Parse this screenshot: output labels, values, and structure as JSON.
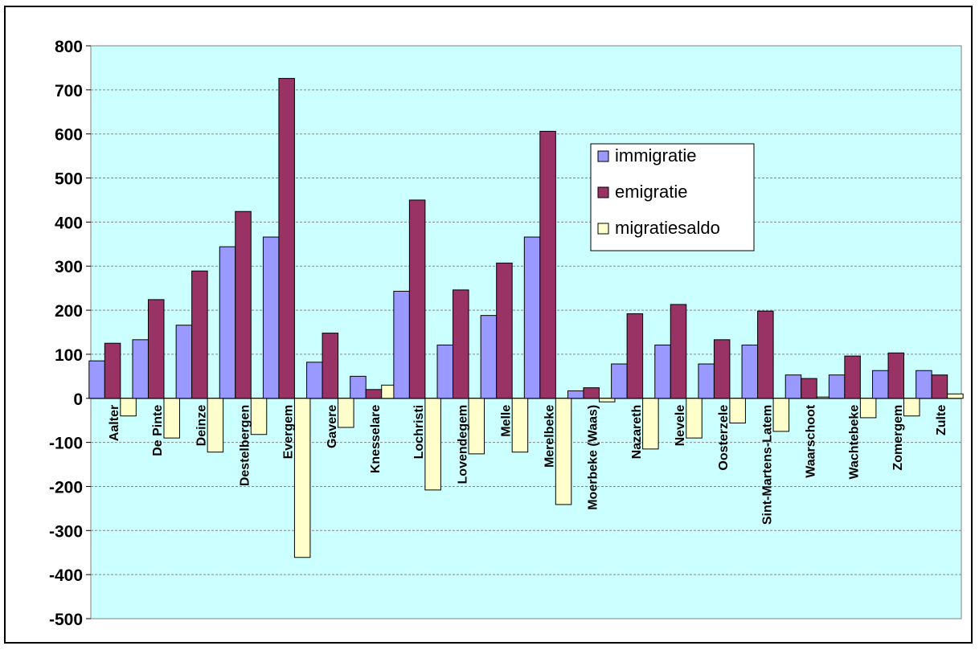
{
  "chart_data": {
    "type": "bar",
    "title": "",
    "xlabel": "",
    "ylabel": "",
    "ylim": [
      -500,
      800
    ],
    "yticks": [
      800,
      700,
      600,
      500,
      400,
      300,
      200,
      100,
      0,
      -100,
      -200,
      -300,
      -400,
      -500
    ],
    "grid": true,
    "legend_position": "top-right",
    "categories": [
      "Aalter",
      "De Pinte",
      "Deinze",
      "Destelbergen",
      "Evergem",
      "Gavere",
      "Knesselare",
      "Lochristi",
      "Lovendegem",
      "Melle",
      "Merelbeke",
      "Moerbeke (Waas)",
      "Nazareth",
      "Nevele",
      "Oosterzele",
      "Sint-Martens-Latem",
      "Waarschoot",
      "Wachtebeke",
      "Zomergem",
      "Zulte"
    ],
    "series": [
      {
        "name": "immigratie",
        "color": "#9999ff",
        "values": [
          85,
          133,
          166,
          344,
          366,
          82,
          50,
          243,
          121,
          188,
          366,
          17,
          78,
          121,
          78,
          121,
          53,
          53,
          63,
          63
        ]
      },
      {
        "name": "emigratie",
        "color": "#993366",
        "values": [
          125,
          224,
          289,
          424,
          726,
          148,
          20,
          450,
          246,
          307,
          606,
          24,
          192,
          213,
          133,
          198,
          45,
          96,
          103,
          53
        ]
      },
      {
        "name": "migratiesaldo",
        "color": "#ffffcc",
        "values": [
          -40,
          -90,
          -122,
          -82,
          -361,
          -66,
          30,
          -208,
          -126,
          -122,
          -241,
          -8,
          -115,
          -90,
          -56,
          -75,
          3,
          -44,
          -40,
          10
        ]
      }
    ],
    "plot_background": "#ccffff"
  }
}
